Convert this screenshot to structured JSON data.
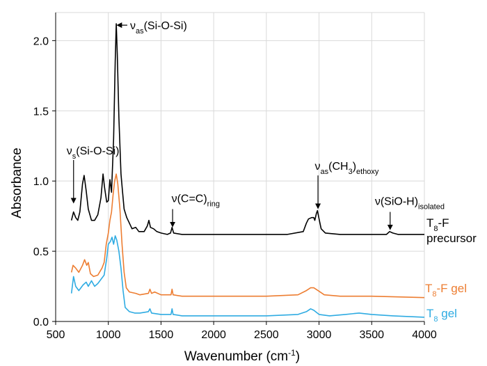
{
  "chart_data": {
    "type": "line",
    "title": "",
    "xlabel": "Wavenumber (cm-1)",
    "xlabel_main": "Wavenumber (cm",
    "xlabel_sup": "-1",
    "xlabel_close": ")",
    "ylabel": "Absorbance",
    "xlim": [
      500,
      4000
    ],
    "ylim": [
      0.0,
      2.2
    ],
    "x_ticks": [
      500,
      1000,
      1500,
      2000,
      2500,
      3000,
      3500,
      4000
    ],
    "y_ticks": [
      0.0,
      0.5,
      1.0,
      1.5,
      2.0
    ],
    "x_tick_labels": [
      "500",
      "1000",
      "1500",
      "2000",
      "2500",
      "3000",
      "3500",
      "4000"
    ],
    "y_tick_labels": [
      "0.0",
      "0.5",
      "1.0",
      "1.5",
      "2.0"
    ],
    "grid": true,
    "series": [
      {
        "name": "T8-F precursor",
        "label_lines": [
          {
            "main": "T",
            "sub": "8",
            "rest": "-F"
          },
          {
            "main": "precursor",
            "sub": "",
            "rest": ""
          }
        ],
        "color": "#000000",
        "points": [
          [
            650,
            0.72
          ],
          [
            670,
            0.78
          ],
          [
            690,
            0.74
          ],
          [
            710,
            0.72
          ],
          [
            730,
            0.78
          ],
          [
            755,
            0.98
          ],
          [
            770,
            1.04
          ],
          [
            790,
            0.93
          ],
          [
            810,
            0.8
          ],
          [
            840,
            0.72
          ],
          [
            870,
            0.72
          ],
          [
            900,
            0.76
          ],
          [
            930,
            0.88
          ],
          [
            950,
            1.05
          ],
          [
            965,
            0.95
          ],
          [
            985,
            0.85
          ],
          [
            1000,
            0.86
          ],
          [
            1015,
            1.01
          ],
          [
            1030,
            0.92
          ],
          [
            1050,
            1.3
          ],
          [
            1065,
            1.85
          ],
          [
            1075,
            2.12
          ],
          [
            1085,
            1.9
          ],
          [
            1100,
            1.45
          ],
          [
            1120,
            1.05
          ],
          [
            1135,
            0.92
          ],
          [
            1150,
            0.8
          ],
          [
            1175,
            0.74
          ],
          [
            1200,
            0.7
          ],
          [
            1225,
            0.66
          ],
          [
            1260,
            0.67
          ],
          [
            1290,
            0.64
          ],
          [
            1340,
            0.64
          ],
          [
            1370,
            0.68
          ],
          [
            1385,
            0.72
          ],
          [
            1400,
            0.67
          ],
          [
            1430,
            0.66
          ],
          [
            1460,
            0.64
          ],
          [
            1500,
            0.63
          ],
          [
            1560,
            0.62
          ],
          [
            1590,
            0.63
          ],
          [
            1605,
            0.67
          ],
          [
            1620,
            0.63
          ],
          [
            1700,
            0.62
          ],
          [
            1900,
            0.62
          ],
          [
            2300,
            0.62
          ],
          [
            2700,
            0.62
          ],
          [
            2850,
            0.64
          ],
          [
            2880,
            0.7
          ],
          [
            2900,
            0.73
          ],
          [
            2930,
            0.74
          ],
          [
            2950,
            0.74
          ],
          [
            2960,
            0.72
          ],
          [
            2975,
            0.77
          ],
          [
            2985,
            0.79
          ],
          [
            2995,
            0.75
          ],
          [
            3020,
            0.66
          ],
          [
            3060,
            0.63
          ],
          [
            3200,
            0.62
          ],
          [
            3500,
            0.62
          ],
          [
            3640,
            0.62
          ],
          [
            3670,
            0.64
          ],
          [
            3700,
            0.63
          ],
          [
            3750,
            0.62
          ],
          [
            4000,
            0.62
          ]
        ]
      },
      {
        "name": "T8-F gel",
        "label_lines": [
          {
            "main": "T",
            "sub": "8",
            "rest": "-F gel"
          }
        ],
        "color": "#ED7D31",
        "points": [
          [
            650,
            0.35
          ],
          [
            665,
            0.4
          ],
          [
            690,
            0.38
          ],
          [
            720,
            0.35
          ],
          [
            755,
            0.4
          ],
          [
            775,
            0.44
          ],
          [
            795,
            0.4
          ],
          [
            810,
            0.42
          ],
          [
            830,
            0.34
          ],
          [
            860,
            0.32
          ],
          [
            900,
            0.33
          ],
          [
            940,
            0.38
          ],
          [
            960,
            0.42
          ],
          [
            980,
            0.55
          ],
          [
            1000,
            0.63
          ],
          [
            1015,
            0.72
          ],
          [
            1030,
            0.78
          ],
          [
            1045,
            0.9
          ],
          [
            1060,
            1.0
          ],
          [
            1075,
            1.05
          ],
          [
            1090,
            0.98
          ],
          [
            1110,
            0.8
          ],
          [
            1130,
            0.55
          ],
          [
            1150,
            0.35
          ],
          [
            1170,
            0.24
          ],
          [
            1200,
            0.21
          ],
          [
            1260,
            0.2
          ],
          [
            1300,
            0.19
          ],
          [
            1380,
            0.2
          ],
          [
            1395,
            0.23
          ],
          [
            1410,
            0.2
          ],
          [
            1440,
            0.21
          ],
          [
            1500,
            0.19
          ],
          [
            1595,
            0.19
          ],
          [
            1605,
            0.23
          ],
          [
            1615,
            0.19
          ],
          [
            1700,
            0.18
          ],
          [
            2000,
            0.18
          ],
          [
            2500,
            0.18
          ],
          [
            2800,
            0.19
          ],
          [
            2880,
            0.22
          ],
          [
            2920,
            0.24
          ],
          [
            2950,
            0.24
          ],
          [
            2990,
            0.22
          ],
          [
            3050,
            0.19
          ],
          [
            3200,
            0.18
          ],
          [
            3500,
            0.18
          ],
          [
            4000,
            0.17
          ]
        ]
      },
      {
        "name": "T8 gel",
        "label_lines": [
          {
            "main": "T",
            "sub": "8",
            "rest": " gel"
          }
        ],
        "color": "#2EABE2",
        "points": [
          [
            650,
            0.2
          ],
          [
            670,
            0.32
          ],
          [
            690,
            0.25
          ],
          [
            720,
            0.22
          ],
          [
            760,
            0.26
          ],
          [
            790,
            0.28
          ],
          [
            810,
            0.25
          ],
          [
            840,
            0.29
          ],
          [
            870,
            0.25
          ],
          [
            900,
            0.27
          ],
          [
            930,
            0.3
          ],
          [
            960,
            0.33
          ],
          [
            985,
            0.45
          ],
          [
            1000,
            0.55
          ],
          [
            1020,
            0.57
          ],
          [
            1035,
            0.6
          ],
          [
            1050,
            0.55
          ],
          [
            1065,
            0.61
          ],
          [
            1080,
            0.58
          ],
          [
            1100,
            0.5
          ],
          [
            1120,
            0.38
          ],
          [
            1140,
            0.22
          ],
          [
            1160,
            0.1
          ],
          [
            1200,
            0.07
          ],
          [
            1250,
            0.06
          ],
          [
            1300,
            0.06
          ],
          [
            1380,
            0.07
          ],
          [
            1395,
            0.09
          ],
          [
            1410,
            0.06
          ],
          [
            1500,
            0.05
          ],
          [
            1595,
            0.05
          ],
          [
            1605,
            0.09
          ],
          [
            1615,
            0.05
          ],
          [
            1700,
            0.04
          ],
          [
            2000,
            0.04
          ],
          [
            2500,
            0.04
          ],
          [
            2800,
            0.05
          ],
          [
            2880,
            0.07
          ],
          [
            2920,
            0.09
          ],
          [
            2950,
            0.08
          ],
          [
            3000,
            0.05
          ],
          [
            3100,
            0.04
          ],
          [
            3250,
            0.05
          ],
          [
            3380,
            0.06
          ],
          [
            3500,
            0.05
          ],
          [
            3700,
            0.04
          ],
          [
            4000,
            0.03
          ]
        ]
      }
    ],
    "annotations": [
      {
        "main": "ν",
        "sub": "as",
        "rest": "(Si-O-Si)",
        "arrow_from": [
          1180,
          2.11
        ],
        "arrow_to": [
          1090,
          2.11
        ],
        "text_at": [
          1180,
          2.11
        ],
        "anchor": "start"
      },
      {
        "main": "ν",
        "sub": "s",
        "rest": "(Si-O-Si)",
        "arrow_from": [
          670,
          1.15
        ],
        "arrow_to": [
          670,
          0.85
        ],
        "text_at": [
          605,
          1.52
        ],
        "anchor": "start",
        "vertical_text": true
      },
      {
        "main": "ν(C=C)",
        "sub": "ring",
        "rest": "",
        "arrow_from": [
          1610,
          0.8
        ],
        "arrow_to": [
          1610,
          0.68
        ],
        "text_at": [
          1600,
          0.85
        ],
        "anchor": "start"
      },
      {
        "main": "ν",
        "sub": "as",
        "rest": "(CH",
        "sub2": "3",
        "rest2": ")",
        "sub3": "ethoxy",
        "arrow_from": [
          2990,
          1.04
        ],
        "arrow_to": [
          2990,
          0.81
        ],
        "text_at": [
          2960,
          1.08
        ],
        "anchor": "start"
      },
      {
        "main": "ν(SiO-H)",
        "sub": "isolated",
        "rest": "",
        "arrow_from": [
          3675,
          0.78
        ],
        "arrow_to": [
          3675,
          0.66
        ],
        "text_at": [
          3530,
          0.83
        ],
        "anchor": "start"
      }
    ]
  }
}
